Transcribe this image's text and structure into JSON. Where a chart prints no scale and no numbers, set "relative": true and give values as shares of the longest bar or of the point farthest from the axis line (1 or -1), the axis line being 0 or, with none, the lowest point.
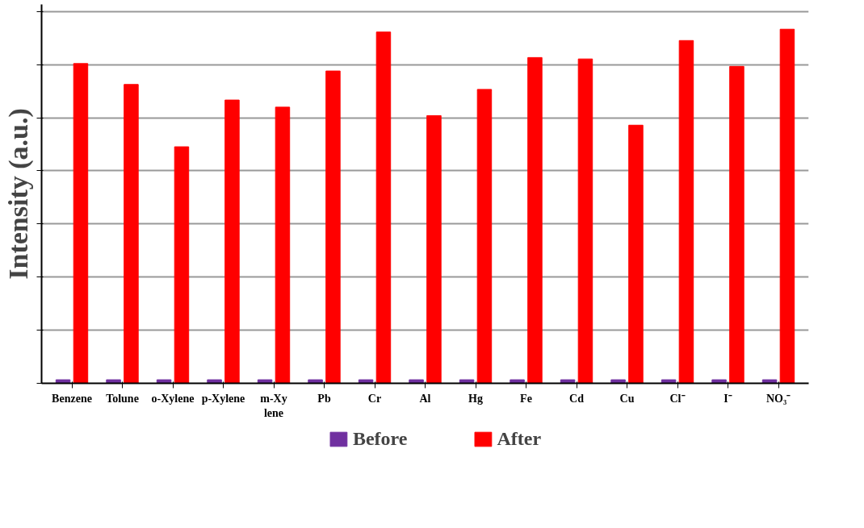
{
  "chart_data": {
    "type": "bar",
    "relative": true,
    "ylabel": "Intensity (a.u.)",
    "categories": [
      "Benzene",
      "Tolune",
      "o-Xylene",
      "p-Xylene",
      "m-Xy\nlene",
      "Pb",
      "Cr",
      "Al",
      "Hg",
      "Fe",
      "Cd",
      "Cu",
      "Cl⁻",
      "I⁻",
      "NO₃⁻"
    ],
    "series": [
      {
        "name": "Before",
        "color": "#7030a0",
        "values": [
          0.01,
          0.01,
          0.01,
          0.01,
          0.01,
          0.01,
          0.01,
          0.01,
          0.01,
          0.01,
          0.01,
          0.01,
          0.01,
          0.01,
          0.01
        ]
      },
      {
        "name": "After",
        "color": "#ff0000",
        "values": [
          0.903,
          0.844,
          0.668,
          0.8,
          0.78,
          0.882,
          0.992,
          0.756,
          0.83,
          0.92,
          0.916,
          0.729,
          0.968,
          0.895,
          1.0
        ]
      }
    ],
    "grid": "y",
    "legend": "bottom"
  }
}
